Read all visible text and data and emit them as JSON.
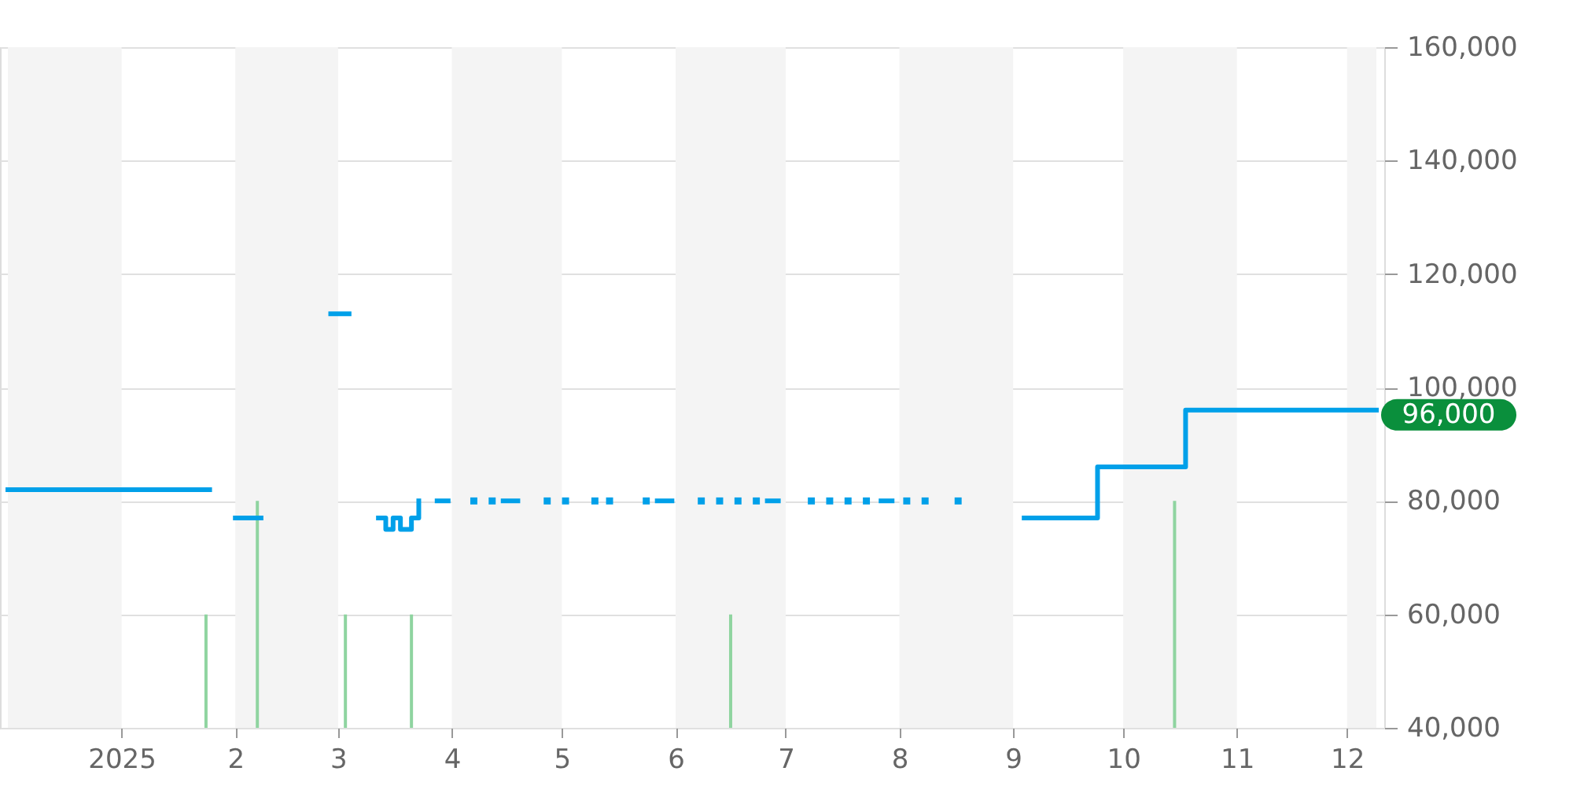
{
  "chart_data": {
    "type": "step",
    "xlim": [
      "2024-12-01",
      "2025-12-09"
    ],
    "xticks": [
      {
        "value": "2025-01-01",
        "label": "2025"
      },
      {
        "value": "2025-02-01",
        "label": "2"
      },
      {
        "value": "2025-03-01",
        "label": "3"
      },
      {
        "value": "2025-04-01",
        "label": "4"
      },
      {
        "value": "2025-05-01",
        "label": "5"
      },
      {
        "value": "2025-06-01",
        "label": "6"
      },
      {
        "value": "2025-07-01",
        "label": "7"
      },
      {
        "value": "2025-08-01",
        "label": "8"
      },
      {
        "value": "2025-09-01",
        "label": "9"
      },
      {
        "value": "2025-10-01",
        "label": "10"
      },
      {
        "value": "2025-11-01",
        "label": "11"
      },
      {
        "value": "2025-12-01",
        "label": "12"
      }
    ],
    "ylim": [
      40000,
      160000
    ],
    "yticks": [
      {
        "value": 40000,
        "label": "40,000"
      },
      {
        "value": 60000,
        "label": "60,000"
      },
      {
        "value": 80000,
        "label": "80,000"
      },
      {
        "value": 100000,
        "label": "100,000"
      },
      {
        "value": 120000,
        "label": "120,000"
      },
      {
        "value": 140000,
        "label": "140,000"
      },
      {
        "value": 160000,
        "label": "160,000"
      }
    ],
    "grid": "y",
    "marker": "none",
    "line_style": "solid",
    "bands": [
      {
        "axis": "x",
        "from": "2024-12-01",
        "to": "2025-01-01",
        "color": "#f4f4f4"
      },
      {
        "axis": "x",
        "from": "2025-02-01",
        "to": "2025-03-01",
        "color": "#f4f4f4"
      },
      {
        "axis": "x",
        "from": "2025-04-01",
        "to": "2025-05-01",
        "color": "#f4f4f4"
      },
      {
        "axis": "x",
        "from": "2025-06-01",
        "to": "2025-07-01",
        "color": "#f4f4f4"
      },
      {
        "axis": "x",
        "from": "2025-08-01",
        "to": "2025-09-01",
        "color": "#f4f4f4"
      },
      {
        "axis": "x",
        "from": "2025-10-01",
        "to": "2025-11-01",
        "color": "#f4f4f4"
      },
      {
        "axis": "x",
        "from": "2025-12-01",
        "to": "2025-12-09",
        "color": "#f4f4f4"
      }
    ],
    "annotations": [
      {
        "text": "96,000",
        "x": "2025-12-09",
        "y": 96000
      }
    ],
    "series": [
      {
        "type": "bar",
        "color": "#8fd4a0",
        "x": [
          "2025-01-24",
          "2025-02-07",
          "2025-03-03",
          "2025-03-21",
          "2025-06-16",
          "2025-10-15"
        ],
        "values": [
          60000,
          80000,
          60000,
          60000,
          60000,
          80000
        ]
      },
      {
        "color": "#00a0e9",
        "x": [
          "2024-12-01",
          "2025-01-25",
          "2025-01-28",
          "2025-02-01",
          "2025-02-08",
          "2025-02-12",
          "2025-02-27",
          "2025-03-04",
          "2025-03-08",
          "2025-03-12",
          "2025-03-13",
          "2025-03-14",
          "2025-03-16",
          "2025-03-18",
          "2025-03-19",
          "2025-03-21",
          "2025-03-22",
          "2025-03-23",
          "2025-03-26",
          "2025-03-28",
          "2025-03-31",
          "2025-04-03",
          "2025-04-15",
          "2025-04-19",
          "2025-04-22",
          "2025-05-27",
          "2025-05-31",
          "2025-06-03",
          "2025-06-26",
          "2025-06-29",
          "2025-07-03",
          "2025-07-27",
          "2025-07-30",
          "2025-08-25",
          "2025-09-04",
          "2025-09-24",
          "2025-10-18",
          "2025-12-09"
        ],
        "values": [
          82000,
          82000,
          null,
          77000,
          77000,
          null,
          113000,
          113000,
          null,
          77000,
          77000,
          75000,
          77000,
          75000,
          75000,
          77000,
          77000,
          80000,
          null,
          80000,
          80000,
          null,
          80000,
          80000,
          null,
          80000,
          80000,
          null,
          80000,
          80000,
          null,
          80000,
          80000,
          null,
          77000,
          86000,
          96000,
          96000
        ]
      },
      {
        "type": "scatter",
        "marker": "square",
        "color": "#00a0e9",
        "x": [
          "2025-04-07",
          "2025-04-12",
          "2025-04-27",
          "2025-05-02",
          "2025-05-10",
          "2025-05-14",
          "2025-05-24",
          "2025-06-08",
          "2025-06-13",
          "2025-06-18",
          "2025-06-23",
          "2025-07-08",
          "2025-07-13",
          "2025-07-18",
          "2025-07-23",
          "2025-08-03",
          "2025-08-08",
          "2025-08-17"
        ],
        "values": [
          80000,
          80000,
          80000,
          80000,
          80000,
          80000,
          80000,
          80000,
          80000,
          80000,
          80000,
          80000,
          80000,
          80000,
          80000,
          80000,
          80000,
          80000
        ]
      }
    ]
  }
}
